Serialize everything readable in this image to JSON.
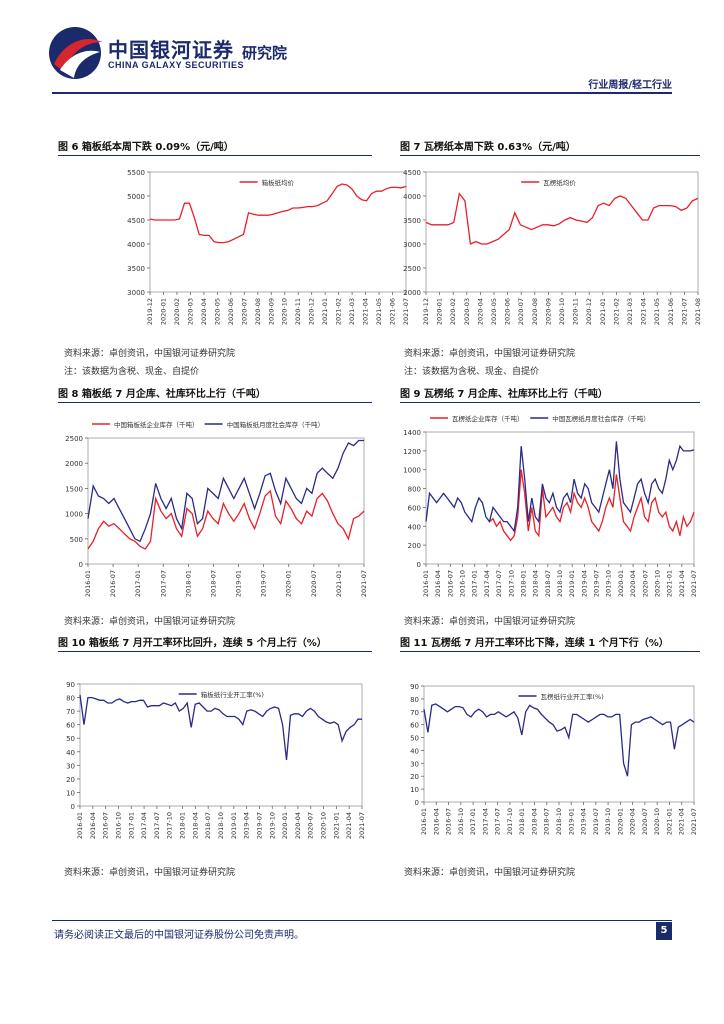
{
  "header": {
    "brand_cn": "中国银河证券",
    "brand_en": "CHINA GALAXY SECURITIES",
    "institute": "研究院",
    "report_type": "行业周报/轻工行业"
  },
  "footer": {
    "disclaimer": "请务必阅读正文最后的中国银河证券股份公司免责声明。",
    "page_number": "5"
  },
  "figures": [
    {
      "title": "图 6 箱板纸本周下跌 0.09%（元/吨）",
      "source": "资料来源：卓创资讯，中国银河证券研究院",
      "note": "注：该数据为含税、现金、自提价"
    },
    {
      "title": "图 7 瓦楞纸本周下跌 0.63%（元/吨）",
      "source": "资料来源：卓创资讯，中国银河证券研究院",
      "note": "注：该数据为含税、现金、自提价"
    },
    {
      "title": "图 8 箱板纸 7 月企库、社库环比上行（千吨）",
      "source": "资料来源：卓创资讯，中国银河证券研究院"
    },
    {
      "title": "图 9 瓦楞纸 7 月企库、社库环比上行（千吨）",
      "source": "资料来源：卓创资讯，中国银河证券研究院"
    },
    {
      "title": "图 10 箱板纸 7 月开工率环比回升，连续 5 个月上行（%）",
      "source": "资料来源：卓创资讯，中国银河证券研究院"
    },
    {
      "title": "图 11 瓦楞纸 7 月开工率环比下降，连续 1 个月下行（%）",
      "source": "资料来源：卓创资讯，中国银河证券研究院"
    }
  ],
  "chart_data": [
    {
      "type": "line",
      "id": "c6",
      "legend": [
        "箱板纸均价"
      ],
      "ylim": [
        3000,
        5500
      ],
      "yticks": [
        3000,
        3500,
        4000,
        4500,
        5000,
        5500
      ],
      "xticks": [
        "2019-12",
        "2020-01",
        "2020-02",
        "2020-03",
        "2020-04",
        "2020-05",
        "2020-06",
        "2020-07",
        "2020-08",
        "2020-09",
        "2020-10",
        "2020-11",
        "2020-12",
        "2021-01",
        "2021-02",
        "2021-03",
        "2021-04",
        "2021-05",
        "2021-06",
        "2021-07"
      ],
      "series": [
        {
          "name": "箱板纸均价",
          "color": "#e8202a",
          "values": [
            4520,
            4500,
            4500,
            4500,
            4500,
            4500,
            4520,
            4850,
            4850,
            4550,
            4200,
            4180,
            4180,
            4050,
            4030,
            4030,
            4050,
            4100,
            4150,
            4200,
            4650,
            4620,
            4600,
            4600,
            4600,
            4620,
            4650,
            4680,
            4700,
            4750,
            4750,
            4760,
            4780,
            4780,
            4800,
            4850,
            4900,
            5050,
            5200,
            5250,
            5230,
            5150,
            5000,
            4920,
            4900,
            5050,
            5100,
            5100,
            5150,
            5180,
            5180,
            5170,
            5200
          ]
        }
      ]
    },
    {
      "type": "line",
      "id": "c7",
      "legend": [
        "瓦楞纸均价"
      ],
      "ylim": [
        2000,
        4500
      ],
      "yticks": [
        2000,
        2500,
        3000,
        3500,
        4000,
        4500
      ],
      "xticks": [
        "2019-12",
        "2020-01",
        "2020-02",
        "2020-03",
        "2020-04",
        "2020-05",
        "2020-06",
        "2020-07",
        "2020-08",
        "2020-09",
        "2020-10",
        "2020-11",
        "2020-12",
        "2021-01",
        "2021-02",
        "2021-03",
        "2021-04",
        "2021-05",
        "2021-06",
        "2021-07",
        "2021-08"
      ],
      "series": [
        {
          "name": "瓦楞纸均价",
          "color": "#e8202a",
          "values": [
            3450,
            3400,
            3400,
            3400,
            3400,
            3450,
            4050,
            3900,
            3000,
            3050,
            3000,
            3000,
            3050,
            3100,
            3200,
            3300,
            3650,
            3400,
            3350,
            3300,
            3350,
            3400,
            3400,
            3380,
            3420,
            3500,
            3550,
            3500,
            3480,
            3450,
            3550,
            3800,
            3850,
            3800,
            3950,
            4000,
            3950,
            3800,
            3650,
            3500,
            3500,
            3750,
            3800,
            3800,
            3800,
            3780,
            3700,
            3750,
            3900,
            3950
          ]
        }
      ]
    },
    {
      "type": "line",
      "id": "c8",
      "legend": [
        "中国箱板纸企业库存（千吨）",
        "中国箱板纸月度社会库存（千吨）"
      ],
      "ylim": [
        0,
        2500
      ],
      "yticks": [
        0,
        500,
        1000,
        1500,
        2000,
        2500
      ],
      "xticks": [
        "2016-01",
        "2016-07",
        "2017-01",
        "2017-07",
        "2018-01",
        "2018-07",
        "2019-01",
        "2019-07",
        "2020-01",
        "2020-07",
        "2021-01",
        "2021-07"
      ],
      "series": [
        {
          "name": "中国箱板纸企业库存（千吨）",
          "color": "#e8202a",
          "values": [
            300,
            450,
            700,
            850,
            750,
            800,
            700,
            600,
            500,
            450,
            350,
            300,
            450,
            1300,
            1050,
            900,
            1000,
            700,
            550,
            1100,
            1000,
            550,
            700,
            1050,
            900,
            800,
            1200,
            1000,
            850,
            1000,
            1200,
            900,
            700,
            1000,
            1350,
            1450,
            950,
            800,
            1250,
            1100,
            900,
            800,
            1050,
            950,
            1300,
            1400,
            1250,
            1000,
            800,
            700,
            500,
            900,
            950,
            1050
          ]
        },
        {
          "name": "中国箱板纸月度社会库存（千吨）",
          "color": "#2a2a8a",
          "values": [
            900,
            1550,
            1350,
            1300,
            1200,
            1300,
            1100,
            900,
            700,
            500,
            450,
            700,
            1000,
            1600,
            1300,
            1100,
            1300,
            900,
            700,
            1400,
            1300,
            800,
            900,
            1500,
            1400,
            1300,
            1700,
            1500,
            1300,
            1500,
            1700,
            1400,
            1100,
            1400,
            1750,
            1800,
            1450,
            1200,
            1700,
            1500,
            1300,
            1200,
            1500,
            1400,
            1800,
            1900,
            1800,
            1700,
            1900,
            2200,
            2400,
            2350,
            2450,
            2450
          ]
        }
      ]
    },
    {
      "type": "line",
      "id": "c9",
      "legend": [
        "瓦楞纸企业库存（千吨）",
        "中国瓦楞纸月度社会库存（千吨）"
      ],
      "ylim": [
        0,
        1400
      ],
      "yticks": [
        0,
        200,
        400,
        600,
        800,
        1000,
        1200,
        1400
      ],
      "xticks": [
        "2016-01",
        "2016-04",
        "2016-07",
        "2016-10",
        "2017-01",
        "2017-04",
        "2017-07",
        "2017-10",
        "2018-01",
        "2018-04",
        "2018-07",
        "2018-10",
        "2019-01",
        "2019-04",
        "2019-07",
        "2019-10",
        "2020-01",
        "2020-04",
        "2020-07",
        "2020-10",
        "2021-01",
        "2021-04",
        "2021-07"
      ],
      "series": [
        {
          "name": "瓦楞纸企业库存（千吨）",
          "color": "#e8202a",
          "values": [
            null,
            null,
            null,
            null,
            null,
            null,
            null,
            null,
            null,
            null,
            null,
            null,
            null,
            null,
            null,
            null,
            null,
            null,
            450,
            480,
            400,
            450,
            350,
            300,
            250,
            300,
            500,
            1000,
            750,
            350,
            600,
            350,
            300,
            800,
            500,
            550,
            600,
            500,
            450,
            600,
            650,
            550,
            750,
            650,
            600,
            700,
            600,
            450,
            400,
            350,
            450,
            600,
            700,
            600,
            950,
            700,
            450,
            400,
            350,
            500,
            600,
            700,
            500,
            450,
            650,
            700,
            550,
            500,
            550,
            400,
            350,
            450,
            300,
            500,
            400,
            450,
            550
          ]
        },
        {
          "name": "中国瓦楞纸月度社会库存（千吨）",
          "color": "#2a2a8a",
          "values": [
            450,
            750,
            700,
            650,
            700,
            750,
            700,
            650,
            600,
            700,
            650,
            550,
            500,
            450,
            600,
            700,
            650,
            500,
            450,
            600,
            550,
            500,
            450,
            450,
            400,
            350,
            600,
            1250,
            900,
            450,
            700,
            500,
            450,
            850,
            700,
            650,
            750,
            600,
            550,
            700,
            750,
            650,
            900,
            750,
            700,
            850,
            800,
            650,
            600,
            550,
            700,
            850,
            1000,
            800,
            1300,
            900,
            650,
            600,
            550,
            700,
            850,
            900,
            750,
            650,
            850,
            900,
            800,
            750,
            900,
            1100,
            1000,
            1100,
            1250,
            1200,
            1200,
            1200,
            1210
          ]
        }
      ]
    },
    {
      "type": "line",
      "id": "c10",
      "legend": [
        "箱板纸行业开工率(%)"
      ],
      "ylim": [
        0,
        90
      ],
      "yticks": [
        0,
        10,
        20,
        30,
        40,
        50,
        60,
        70,
        80,
        90
      ],
      "xticks": [
        "2016-01",
        "2016-04",
        "2016-07",
        "2016-10",
        "2017-01",
        "2017-04",
        "2017-07",
        "2017-10",
        "2018-01",
        "2018-04",
        "2018-07",
        "2018-10",
        "2019-01",
        "2019-04",
        "2019-07",
        "2019-10",
        "2020-01",
        "2020-04",
        "2020-07",
        "2020-10",
        "2021-01",
        "2021-04",
        "2021-07"
      ],
      "series": [
        {
          "name": "箱板纸行业开工率(%)",
          "color": "#2a2a8a",
          "values": [
            82,
            60,
            80,
            80,
            79,
            78,
            78,
            76,
            76,
            78,
            79,
            77,
            76,
            77,
            77,
            78,
            78,
            73,
            74,
            74,
            74,
            76,
            75,
            74,
            76,
            70,
            72,
            76,
            58,
            75,
            76,
            73,
            70,
            70,
            72,
            71,
            68,
            66,
            66,
            66,
            64,
            60,
            70,
            71,
            70,
            68,
            66,
            70,
            72,
            73,
            72,
            60,
            34,
            67,
            68,
            68,
            66,
            70,
            72,
            70,
            66,
            64,
            62,
            61,
            62,
            60,
            48,
            55,
            58,
            60,
            64,
            64
          ]
        }
      ]
    },
    {
      "type": "line",
      "id": "c11",
      "legend": [
        "瓦楞纸行业开工率(%)"
      ],
      "ylim": [
        0,
        90
      ],
      "yticks": [
        0,
        10,
        20,
        30,
        40,
        50,
        60,
        70,
        80,
        90
      ],
      "xticks": [
        "2016-01",
        "2016-04",
        "2016-07",
        "2016-10",
        "2017-01",
        "2017-04",
        "2017-07",
        "2017-10",
        "2018-01",
        "2018-04",
        "2018-07",
        "2018-10",
        "2019-01",
        "2019-04",
        "2019-07",
        "2019-10",
        "2020-01",
        "2020-04",
        "2020-07",
        "2020-10",
        "2021-01",
        "2021-04",
        "2021-07"
      ],
      "series": [
        {
          "name": "瓦楞纸行业开工率(%)",
          "color": "#2a2a8a",
          "values": [
            72,
            54,
            75,
            76,
            74,
            72,
            70,
            72,
            74,
            74,
            73,
            68,
            66,
            70,
            72,
            70,
            66,
            68,
            68,
            70,
            68,
            66,
            68,
            70,
            65,
            52,
            70,
            75,
            73,
            72,
            68,
            65,
            62,
            60,
            55,
            56,
            58,
            50,
            68,
            68,
            66,
            64,
            62,
            64,
            66,
            68,
            68,
            66,
            66,
            68,
            68,
            30,
            20,
            60,
            62,
            62,
            64,
            65,
            66,
            64,
            62,
            60,
            62,
            62,
            41,
            58,
            60,
            62,
            64,
            62
          ]
        }
      ]
    }
  ]
}
